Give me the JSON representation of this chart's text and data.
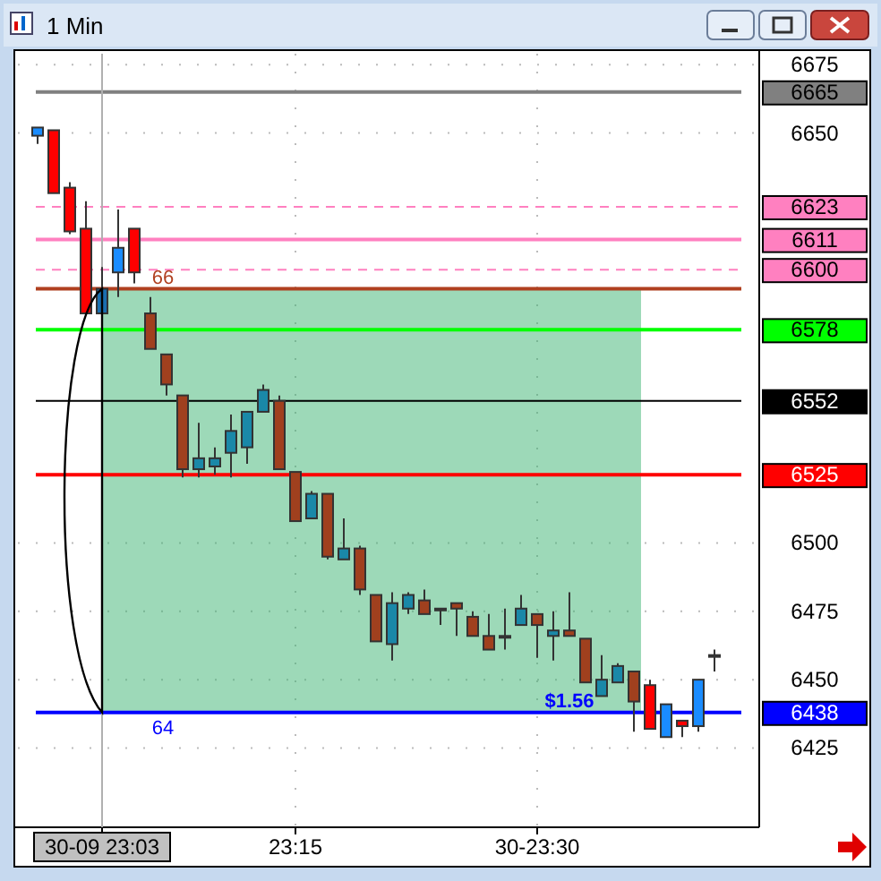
{
  "chart_data": {
    "type": "candlestick",
    "title": "1 Min",
    "categories": [
      null,
      null,
      null,
      null,
      "30-09 23:03",
      null,
      null,
      null,
      null,
      null,
      null,
      null,
      null,
      null,
      null,
      null,
      "23:15",
      null,
      null,
      null,
      null,
      null,
      null,
      null,
      null,
      null,
      null,
      null,
      null,
      null,
      null,
      "30-23:30",
      null,
      null,
      null,
      null,
      null,
      null,
      null,
      null,
      null,
      null,
      null
    ],
    "ohlc": [
      [
        6649,
        6652,
        6646,
        6652
      ],
      [
        6651,
        6651,
        6628,
        6628
      ],
      [
        6630,
        6632,
        6613,
        6614
      ],
      [
        6615,
        6625,
        6584,
        6584
      ],
      [
        6584,
        6601,
        6578,
        6593
      ],
      [
        6599,
        6622,
        6590,
        6608
      ],
      [
        6615,
        6615,
        6595,
        6599
      ],
      [
        6584,
        6590,
        6571,
        6571
      ],
      [
        6569,
        6569,
        6554,
        6558
      ],
      [
        6554,
        6554,
        6524,
        6527
      ],
      [
        6527,
        6544,
        6524,
        6531
      ],
      [
        6528,
        6535,
        6525,
        6531
      ],
      [
        6533,
        6547,
        6524,
        6541
      ],
      [
        6535,
        6548,
        6529,
        6548
      ],
      [
        6548,
        6558,
        6548,
        6556
      ],
      [
        6552,
        6554,
        6527,
        6527
      ],
      [
        6526,
        6526,
        6508,
        6508
      ],
      [
        6509,
        6519,
        6509,
        6518
      ],
      [
        6518,
        6518,
        6494,
        6495
      ],
      [
        6494,
        6509,
        6494,
        6498
      ],
      [
        6498,
        6499,
        6481,
        6483
      ],
      [
        6481,
        6481,
        6464,
        6464
      ],
      [
        6463,
        6482,
        6457,
        6478
      ],
      [
        6476,
        6482,
        6474,
        6481
      ],
      [
        6479,
        6483,
        6474,
        6474
      ],
      [
        6476,
        6476,
        6470,
        6476
      ],
      [
        6478,
        6478,
        6466,
        6476
      ],
      [
        6473,
        6475,
        6466,
        6466
      ],
      [
        6466,
        6474,
        6461,
        6461
      ],
      [
        6466,
        6476,
        6461,
        6466
      ],
      [
        6470,
        6481,
        6470,
        6476
      ],
      [
        6474,
        6474,
        6458,
        6470
      ],
      [
        6466,
        6475,
        6457,
        6468
      ],
      [
        6468,
        6482,
        6466,
        6466
      ],
      [
        6465,
        6465,
        6449,
        6449
      ],
      [
        6444,
        6459,
        6444,
        6450
      ],
      [
        6449,
        6456,
        6449,
        6455
      ],
      [
        6453,
        6453,
        6431,
        6442
      ],
      [
        6448,
        6450,
        6432,
        6432
      ],
      [
        6429,
        6441,
        6429,
        6441
      ],
      [
        6435,
        6435,
        6429,
        6433
      ],
      [
        6433,
        6450,
        6431,
        6450
      ],
      [
        6459,
        6461,
        6453,
        6459
      ]
    ],
    "colors": [
      "#1a8cff",
      "#ff0000",
      "#ff0000",
      "#ff0000",
      "#1a6fb0",
      "#1a8cff",
      "#ff0000",
      "#a0401e",
      "#a0401e",
      "#a0401e",
      "#1a88a8",
      "#1a88a8",
      "#1a88a8",
      "#1a88a8",
      "#1a88a8",
      "#a0401e",
      "#a0401e",
      "#1a88a8",
      "#a0401e",
      "#1a88a8",
      "#a0401e",
      "#a0401e",
      "#1a88a8",
      "#1a88a8",
      "#a0401e",
      "#1a88a8",
      "#a0401e",
      "#a0401e",
      "#a0401e",
      "#1a88a8",
      "#1a88a8",
      "#a0401e",
      "#1a88a8",
      "#a0401e",
      "#a0401e",
      "#1a88a8",
      "#1a88a8",
      "#a0401e",
      "#ff0000",
      "#1a8cff",
      "#ff0000",
      "#1a8cff",
      "#1a8cff"
    ],
    "ylim": [
      6396,
      6679
    ],
    "yticks": [
      6425,
      6450,
      6475,
      6500,
      6650,
      6675
    ],
    "grid": true,
    "ref_lines": [
      {
        "axis": "y",
        "value": 6665,
        "label": "6665",
        "color": "#808080",
        "line_style": "solid"
      },
      {
        "axis": "y",
        "value": 6623,
        "label": "6623",
        "color": "#ff80c0",
        "line_style": "dashed"
      },
      {
        "axis": "y",
        "value": 6611,
        "label": "6611",
        "color": "#ff80c0",
        "line_style": "solid"
      },
      {
        "axis": "y",
        "value": 6600,
        "label": "6600",
        "color": "#ff80c0",
        "line_style": "dashed"
      },
      {
        "axis": "y",
        "value": 6593,
        "label": null,
        "color": "#b04020",
        "line_style": "solid"
      },
      {
        "axis": "y",
        "value": 6578,
        "label": "6578",
        "color": "#00ff00",
        "line_style": "solid"
      },
      {
        "axis": "y",
        "value": 6552,
        "label": "6552",
        "color": "#000000",
        "line_style": "solid"
      },
      {
        "axis": "y",
        "value": 6525,
        "label": "6525",
        "color": "#ff0000",
        "line_style": "solid"
      },
      {
        "axis": "y",
        "value": 6438,
        "label": "6438",
        "color": "#0000ff",
        "line_style": "solid"
      },
      {
        "axis": "x",
        "value": "30-09 23:03",
        "label": null,
        "color": "#b0b0b0",
        "line_style": "solid"
      }
    ],
    "bands": [
      {
        "axis": "y",
        "from": 6438,
        "to": 6593,
        "color": "#3cb371"
      }
    ],
    "annotations": [
      {
        "text": "66",
        "x": "30-09 23:03",
        "y": 6593
      },
      {
        "text": "64",
        "x": "30-09 23:03",
        "y": 6438
      },
      {
        "text": "$1.56",
        "y": 6438
      }
    ]
  }
}
